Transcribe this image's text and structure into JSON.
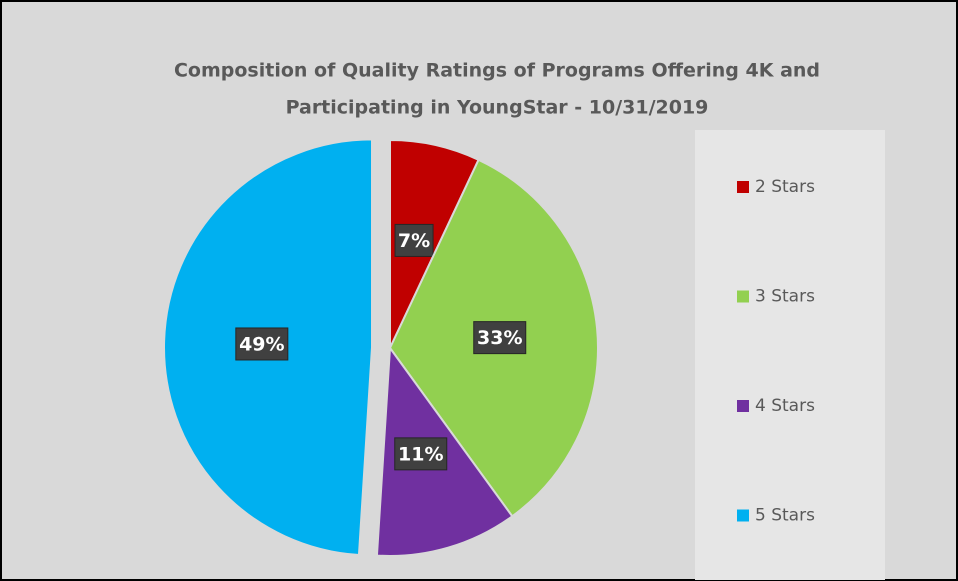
{
  "chart_data": {
    "type": "pie",
    "title": "Composition of Quality Ratings of Programs Offering 4K and",
    "subtitle": "Participating in YoungStar - 10/31/2019",
    "categories": [
      "2 Stars",
      "3 Stars",
      "4 Stars",
      "5 Stars"
    ],
    "values": [
      7,
      33,
      11,
      49
    ],
    "value_labels": [
      "7%",
      "33%",
      "11%",
      "49%"
    ],
    "colors": [
      "#c00000",
      "#92d050",
      "#7030a0",
      "#00b0f0"
    ],
    "legend": "right"
  }
}
